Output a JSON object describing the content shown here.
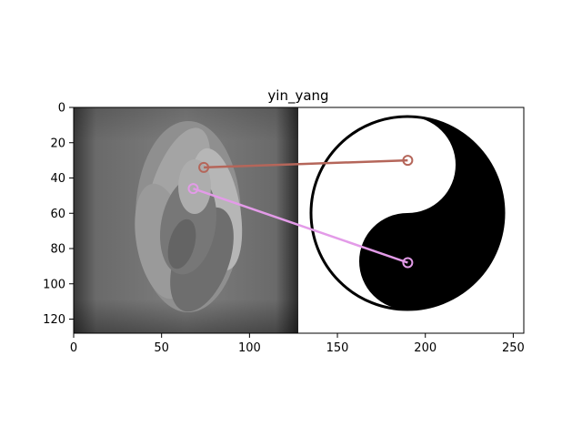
{
  "chart_data": {
    "type": "image_match",
    "title": "yin_yang",
    "xlabel": "",
    "ylabel": "",
    "xlim": [
      0,
      256
    ],
    "ylim": [
      128,
      0
    ],
    "xticks": [
      0,
      50,
      100,
      150,
      200,
      250
    ],
    "yticks": [
      0,
      20,
      40,
      60,
      80,
      100,
      120
    ],
    "grid": false,
    "panels": [
      {
        "name": "",
        "x_range": [
          0,
          128
        ],
        "content": "grayscale swirl image"
      },
      {
        "name": "",
        "x_range": [
          128,
          256
        ],
        "content": "yin-yang symbol"
      }
    ],
    "matches": [
      {
        "from": [
          74,
          34
        ],
        "to": [
          190,
          30
        ],
        "color": "#b5665a"
      },
      {
        "from": [
          68,
          46
        ],
        "to": [
          190,
          88
        ],
        "color": "#e39be8"
      }
    ]
  }
}
